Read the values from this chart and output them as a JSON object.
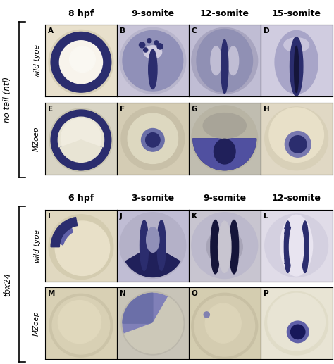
{
  "top_col_labels": [
    "8 hpf",
    "9-somite",
    "12-somite",
    "15-somite"
  ],
  "bottom_col_labels": [
    "6 hpf",
    "3-somite",
    "9-somite",
    "12-somite"
  ],
  "top_row_labels": [
    "wild-type",
    "MZoep"
  ],
  "bottom_row_labels": [
    "wild-type",
    "MZoep"
  ],
  "top_gene_label": "no tail (ntl)",
  "bottom_gene_label": "tbx24",
  "panel_letters_top": [
    [
      "A",
      "B",
      "C",
      "D"
    ],
    [
      "E",
      "F",
      "G",
      "H"
    ]
  ],
  "panel_letters_bottom": [
    [
      "I",
      "J",
      "K",
      "L"
    ],
    [
      "M",
      "N",
      "O",
      "P"
    ]
  ],
  "bg_color": "#ffffff",
  "grid_color": "#000000",
  "panel_letter_fontsize": 7.5,
  "gene_label_fontsize": 8.5,
  "row_label_fontsize": 7.5,
  "col_label_fontsize": 9,
  "embryo_bg": "#f0ead6",
  "embryo_blue_dark": "#2b2d6e",
  "embryo_blue_mid": "#6b6fa8",
  "embryo_blue_light": "#a8aad0",
  "embryo_cream": "#f5f0e0",
  "embryo_tan": "#e8dfc0"
}
